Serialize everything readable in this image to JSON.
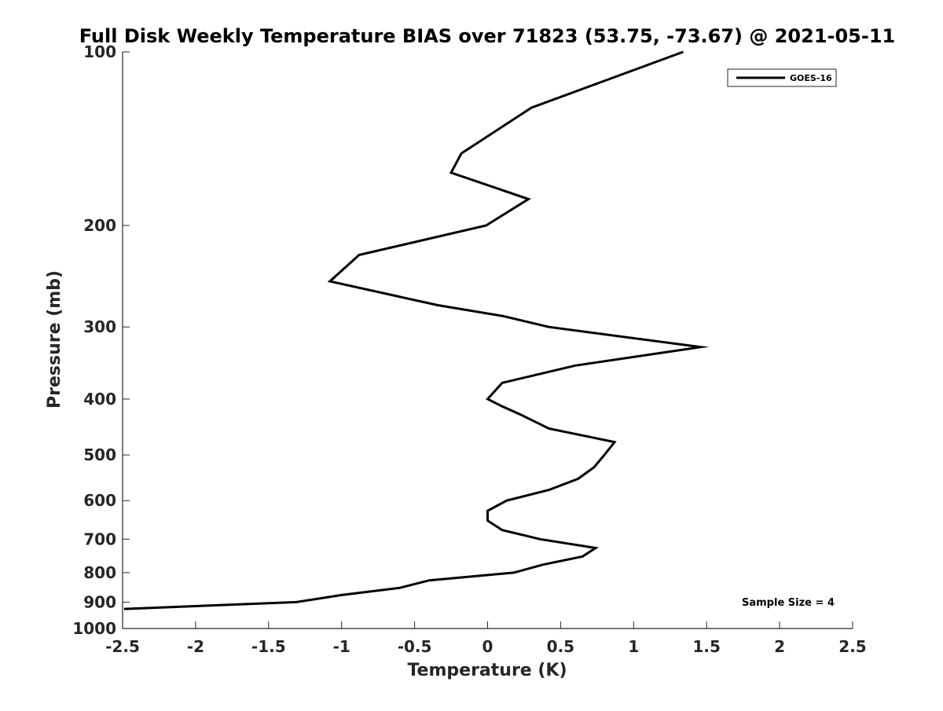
{
  "chart_data": {
    "type": "line",
    "title": "Full Disk Weekly Temperature BIAS over 71823 (53.75, -73.67) @ 2021-05-11",
    "xlabel": "Temperature (K)",
    "ylabel": "Pressure (mb)",
    "xlim": [
      -2.5,
      2.5
    ],
    "ylim": [
      100,
      1000
    ],
    "y_scale": "log",
    "y_reversed": true,
    "x_ticks": [
      "-2.5",
      "-2",
      "-1.5",
      "-1",
      "-0.5",
      "0",
      "0.5",
      "1",
      "1.5",
      "2",
      "2.5"
    ],
    "y_ticks": [
      "100",
      "200",
      "300",
      "400",
      "500",
      "600",
      "700",
      "800",
      "900",
      "1000"
    ],
    "grid": false,
    "legend_position": "top-right",
    "series": [
      {
        "name": "GOES-16",
        "color": "#000000",
        "x": [
          1.34,
          0.3,
          -0.18,
          -0.25,
          0.28,
          -0.01,
          -0.88,
          -1.08,
          -0.34,
          0.1,
          0.42,
          1.46,
          0.6,
          0.1,
          0.0,
          0.1,
          0.22,
          0.42,
          0.87,
          0.8,
          0.73,
          0.62,
          0.42,
          0.13,
          0.0,
          0.0,
          0.1,
          0.36,
          0.74,
          0.65,
          0.38,
          0.18,
          -0.4,
          -0.6,
          -1.0,
          -1.31,
          -2.49
        ],
        "y": [
          100,
          125,
          150,
          162,
          180,
          200,
          225,
          250,
          275,
          287,
          300,
          325,
          350,
          375,
          400,
          412,
          425,
          450,
          475,
          500,
          525,
          550,
          575,
          600,
          625,
          650,
          675,
          700,
          725,
          750,
          775,
          800,
          825,
          850,
          875,
          900,
          925
        ]
      }
    ],
    "annotation": "Sample Size = 4"
  }
}
